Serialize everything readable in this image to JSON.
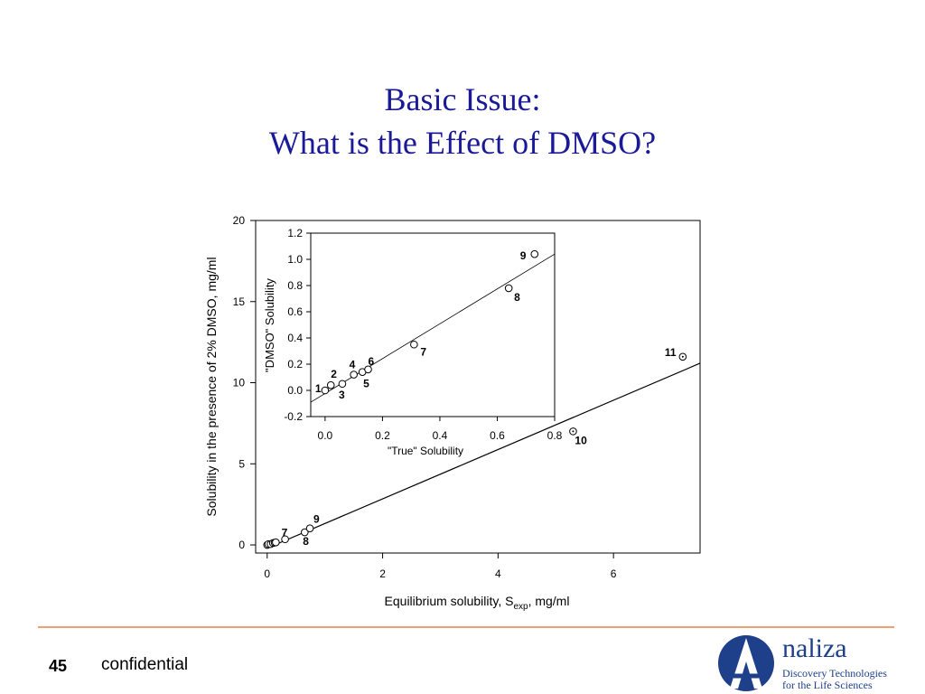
{
  "slide": {
    "title_line1": "Basic Issue:",
    "title_line2": "What is the Effect of DMSO?",
    "page_number": "45",
    "footer_text": "confidential"
  },
  "logo": {
    "letter": "A",
    "name": "naliza",
    "tagline1": "Discovery Technologies",
    "tagline2": "for the Life Sciences"
  },
  "colors": {
    "title": "#1a1a99",
    "footer_line": "#f0a070",
    "logo": "#1e3f8a"
  },
  "chart_data": [
    {
      "type": "scatter",
      "title": "",
      "xlabel_main": "Equilibrium solubility, S",
      "xlabel_sub": "exp",
      "xlabel_tail": ", mg/ml",
      "ylabel": "Solubility in the presence of 2% DMSO, mg/ml",
      "xlim": [
        -0.2,
        7.5
      ],
      "ylim": [
        -0.5,
        20
      ],
      "xticks": [
        "0",
        "2",
        "4",
        "6"
      ],
      "xtick_values": [
        0,
        2,
        4,
        6
      ],
      "yticks": [
        "0",
        "5",
        "10",
        "15",
        "20"
      ],
      "ytick_values": [
        0,
        5,
        10,
        15,
        20
      ],
      "grid": false,
      "points": [
        {
          "label": "1",
          "x": 0.0,
          "y": 0.0,
          "show_label": false,
          "dotted": false
        },
        {
          "label": "2",
          "x": 0.02,
          "y": 0.05,
          "show_label": false,
          "dotted": false
        },
        {
          "label": "3",
          "x": 0.06,
          "y": 0.05,
          "show_label": false,
          "dotted": false
        },
        {
          "label": "4",
          "x": 0.1,
          "y": 0.12,
          "show_label": false,
          "dotted": false
        },
        {
          "label": "5",
          "x": 0.13,
          "y": 0.14,
          "show_label": false,
          "dotted": false
        },
        {
          "label": "6",
          "x": 0.15,
          "y": 0.16,
          "show_label": false,
          "dotted": false
        },
        {
          "label": "7",
          "x": 0.31,
          "y": 0.35,
          "show_label": true,
          "dotted": false
        },
        {
          "label": "8",
          "x": 0.65,
          "y": 0.78,
          "show_label": true,
          "dotted": false
        },
        {
          "label": "9",
          "x": 0.74,
          "y": 1.02,
          "show_label": true,
          "dotted": false
        },
        {
          "label": "10",
          "x": 5.3,
          "y": 7.0,
          "show_label": true,
          "dotted": true
        },
        {
          "label": "11",
          "x": 7.2,
          "y": 11.6,
          "show_label": true,
          "dotted": true
        }
      ],
      "fit_line": {
        "x": [
          0,
          7.5
        ],
        "y": [
          -0.2,
          11.2
        ]
      }
    },
    {
      "type": "scatter",
      "title": "",
      "xlabel": "\"True\" Solubility",
      "ylabel": "\"DMSO\" Solubility",
      "xlim": [
        -0.05,
        0.8
      ],
      "ylim": [
        -0.2,
        1.2
      ],
      "xticks": [
        "0.0",
        "0.2",
        "0.4",
        "0.6",
        "0.8"
      ],
      "xtick_values": [
        0.0,
        0.2,
        0.4,
        0.6,
        0.8
      ],
      "yticks": [
        "-0.2",
        "0.0",
        "0.2",
        "0.4",
        "0.6",
        "0.8",
        "1.0",
        "1.2"
      ],
      "ytick_values": [
        -0.2,
        0.0,
        0.2,
        0.4,
        0.6,
        0.8,
        1.0,
        1.2
      ],
      "grid": false,
      "points": [
        {
          "label": "1",
          "x": 0.0,
          "y": 0.0
        },
        {
          "label": "2",
          "x": 0.02,
          "y": 0.04
        },
        {
          "label": "3",
          "x": 0.06,
          "y": 0.05
        },
        {
          "label": "4",
          "x": 0.1,
          "y": 0.12
        },
        {
          "label": "5",
          "x": 0.13,
          "y": 0.14
        },
        {
          "label": "6",
          "x": 0.15,
          "y": 0.16
        },
        {
          "label": "7",
          "x": 0.31,
          "y": 0.35
        },
        {
          "label": "8",
          "x": 0.64,
          "y": 0.78
        },
        {
          "label": "9",
          "x": 0.73,
          "y": 1.04
        }
      ],
      "fit_line": {
        "x": [
          -0.05,
          0.8
        ],
        "y": [
          -0.09,
          1.04
        ]
      }
    }
  ]
}
